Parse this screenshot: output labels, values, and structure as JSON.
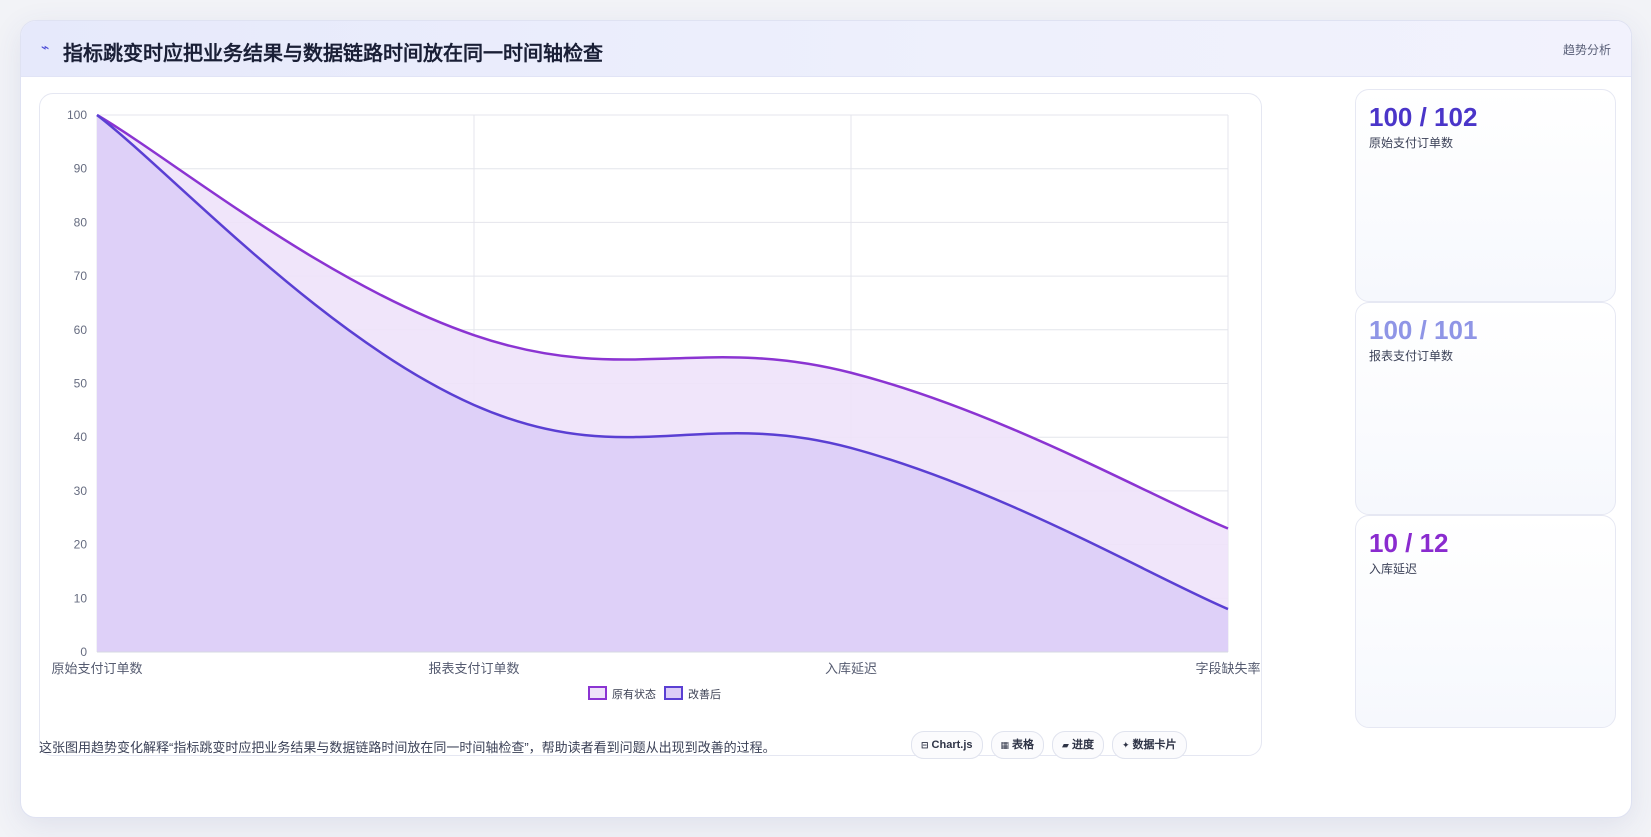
{
  "header": {
    "logo": "⌁",
    "title": "指标跳变时应把业务结果与数据链路时间放在同一时间轴检查",
    "tag": "趋势分析"
  },
  "stats": [
    {
      "value": "100 / 102",
      "label": "原始支付订单数",
      "color": "#4a35c9"
    },
    {
      "value": "100 / 101",
      "label": "报表支付订单数",
      "color": "#8f95e6"
    },
    {
      "value": "10 / 12",
      "label": "入库延迟",
      "color": "#8a2bcf"
    }
  ],
  "footer": {
    "caption": "这张图用趋势变化解释“指标跳变时应把业务结果与数据链路时间放在同一时间轴检查”，帮助读者看到问题从出现到改善的过程。",
    "chips": [
      {
        "icon": "⊟",
        "label": "Chart.js"
      },
      {
        "icon": "▦",
        "label": "表格"
      },
      {
        "icon": "▰",
        "label": "进度"
      },
      {
        "icon": "✦",
        "label": "数据卡片"
      }
    ]
  },
  "chart_data": {
    "type": "area",
    "categories": [
      "原始支付订单数",
      "报表支付订单数",
      "入库延迟",
      "字段缺失率"
    ],
    "series": [
      {
        "name": "原有状态",
        "values": [
          100,
          59,
          52,
          23
        ],
        "color": "#8b34d2",
        "fill": "#eee2f9"
      },
      {
        "name": "改善后",
        "values": [
          100,
          46,
          38,
          8
        ],
        "color": "#5a3fd3",
        "fill": "#dccdf7"
      }
    ],
    "ylim": [
      0,
      100
    ],
    "yticks": [
      0,
      10,
      20,
      30,
      40,
      50,
      60,
      70,
      80,
      90,
      100
    ],
    "grid": true,
    "legend": "bottom"
  }
}
